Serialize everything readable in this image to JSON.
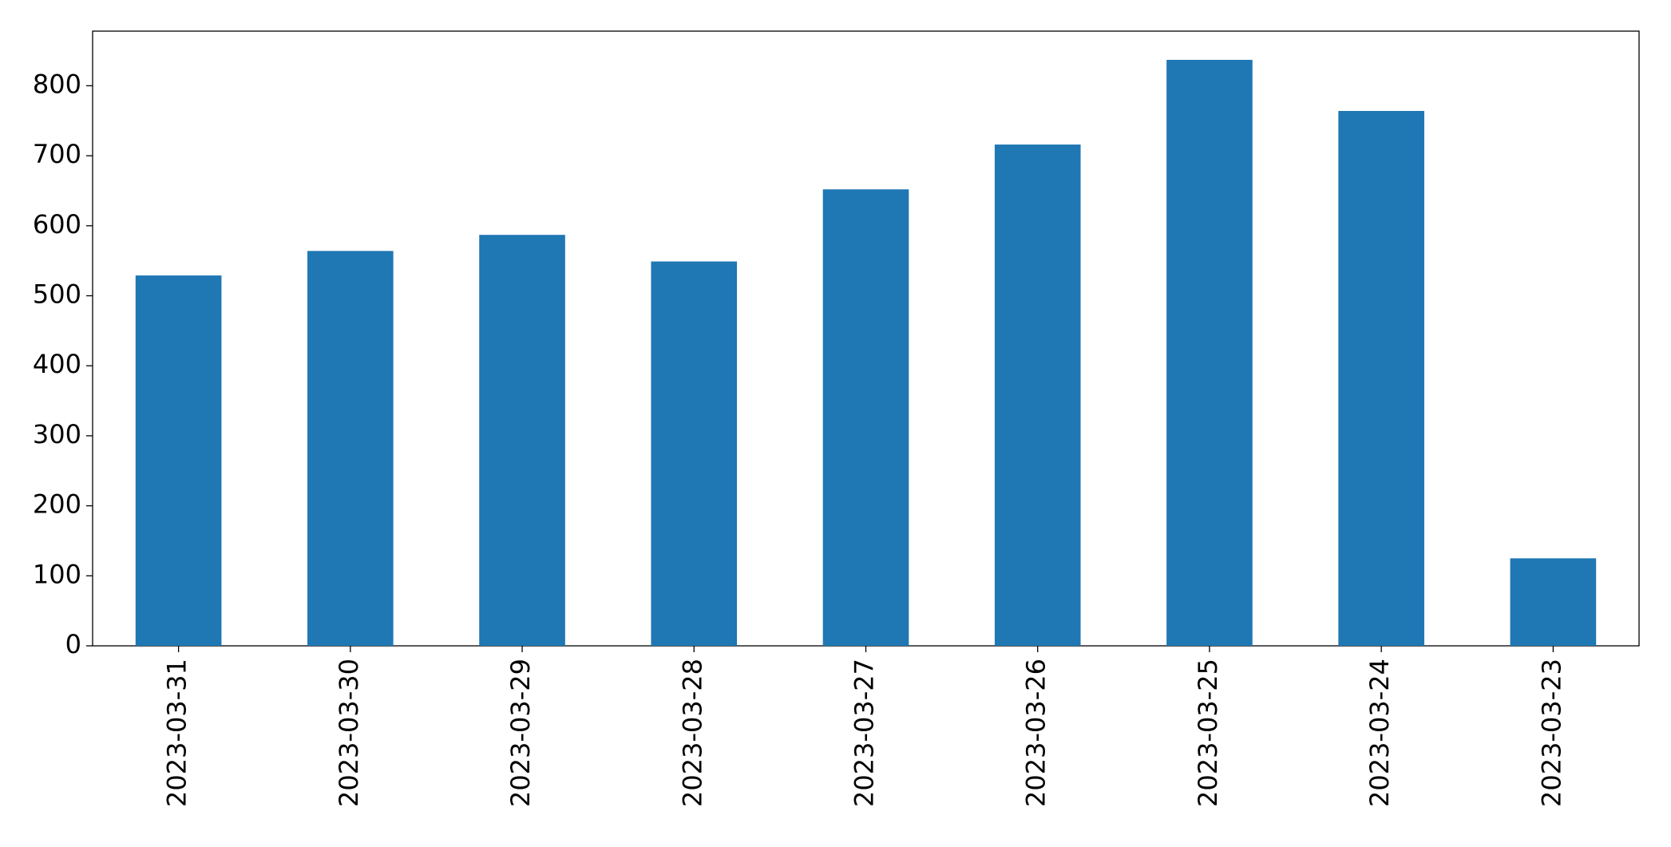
{
  "chart_data": {
    "type": "bar",
    "categories": [
      "2023-03-31",
      "2023-03-30",
      "2023-03-29",
      "2023-03-28",
      "2023-03-27",
      "2023-03-26",
      "2023-03-25",
      "2023-03-24",
      "2023-03-23"
    ],
    "values": [
      529,
      564,
      587,
      549,
      652,
      716,
      837,
      764,
      125
    ],
    "color": "#1f77b4",
    "ylim": [
      0,
      878
    ],
    "yticks": [
      0,
      100,
      200,
      300,
      400,
      500,
      600,
      700,
      800
    ],
    "grid": false
  }
}
